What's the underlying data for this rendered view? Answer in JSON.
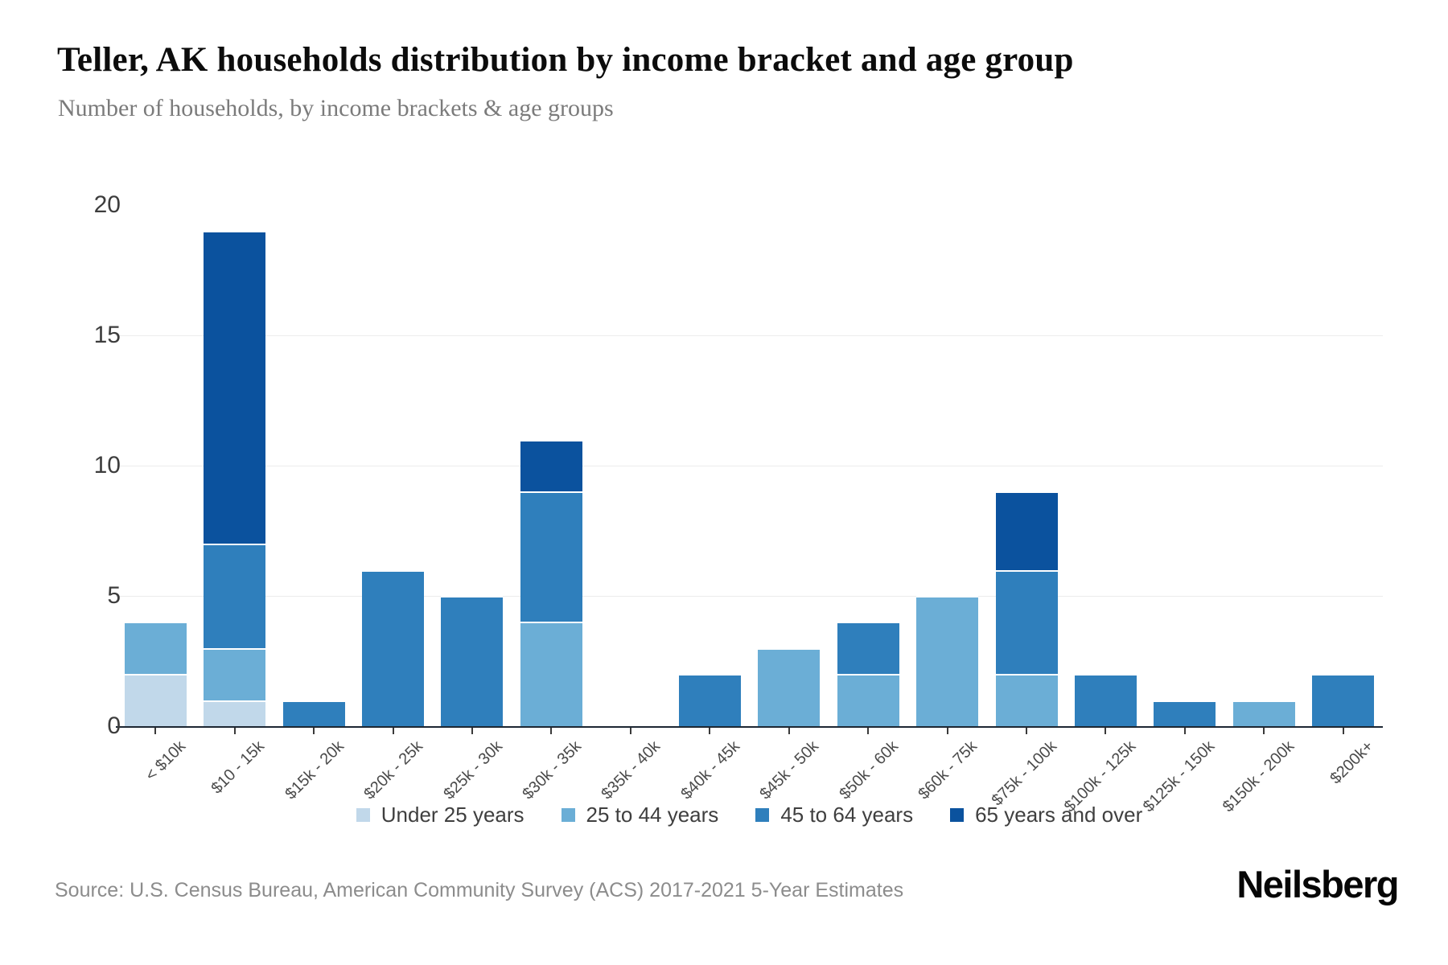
{
  "header": {
    "title": "Teller, AK households distribution by income bracket and age group",
    "subtitle": "Number of households, by income brackets & age groups"
  },
  "source": {
    "text": "Source: U.S. Census Bureau, American Community Survey (ACS) 2017-2021 5-Year Estimates"
  },
  "brand": {
    "logo": "Neilsberg"
  },
  "colors": {
    "under_25": "#c1d8ea",
    "age_25_44": "#6baed6",
    "age_45_64": "#2f7fbc",
    "age_65_plus": "#0b529e",
    "gridline": "#ececec",
    "axis_line": "#1d2733"
  },
  "chart_data": {
    "type": "bar",
    "stacked": true,
    "title": "Teller, AK households distribution by income bracket and age group",
    "xlabel": "",
    "ylabel": "",
    "ylim": [
      0,
      20
    ],
    "yticks": [
      0,
      5,
      10,
      15,
      20
    ],
    "grid_ticks": [
      5,
      10,
      15
    ],
    "grid": true,
    "legend_position": "bottom",
    "categories": [
      "< $10k",
      "$10 - 15k",
      "$15k - 20k",
      "$20k - 25k",
      "$25k - 30k",
      "$30k - 35k",
      "$35k - 40k",
      "$40k - 45k",
      "$45k - 50k",
      "$50k - 60k",
      "$60k - 75k",
      "$75k - 100k",
      "$100k - 125k",
      "$125k - 150k",
      "$150k - 200k",
      "$200k+"
    ],
    "series": [
      {
        "name": "Under 25 years",
        "color": "#c1d8ea",
        "values": [
          2,
          1,
          0,
          0,
          0,
          0,
          0,
          0,
          0,
          0,
          0,
          0,
          0,
          0,
          0,
          0
        ]
      },
      {
        "name": "25 to 44 years",
        "color": "#6baed6",
        "values": [
          2,
          2,
          0,
          0,
          0,
          4,
          0,
          0,
          3,
          2,
          5,
          2,
          0,
          0,
          1,
          0
        ]
      },
      {
        "name": "45 to 64 years",
        "color": "#2f7fbc",
        "values": [
          0,
          4,
          1,
          6,
          5,
          5,
          0,
          2,
          0,
          2,
          0,
          4,
          2,
          1,
          0,
          2
        ]
      },
      {
        "name": "65 years and over",
        "color": "#0b529e",
        "values": [
          0,
          12,
          0,
          0,
          0,
          2,
          0,
          0,
          0,
          0,
          0,
          3,
          0,
          0,
          0,
          0
        ]
      }
    ],
    "totals": [
      4,
      19,
      1,
      6,
      5,
      11,
      0,
      2,
      3,
      4,
      5,
      9,
      2,
      1,
      1,
      2
    ]
  }
}
